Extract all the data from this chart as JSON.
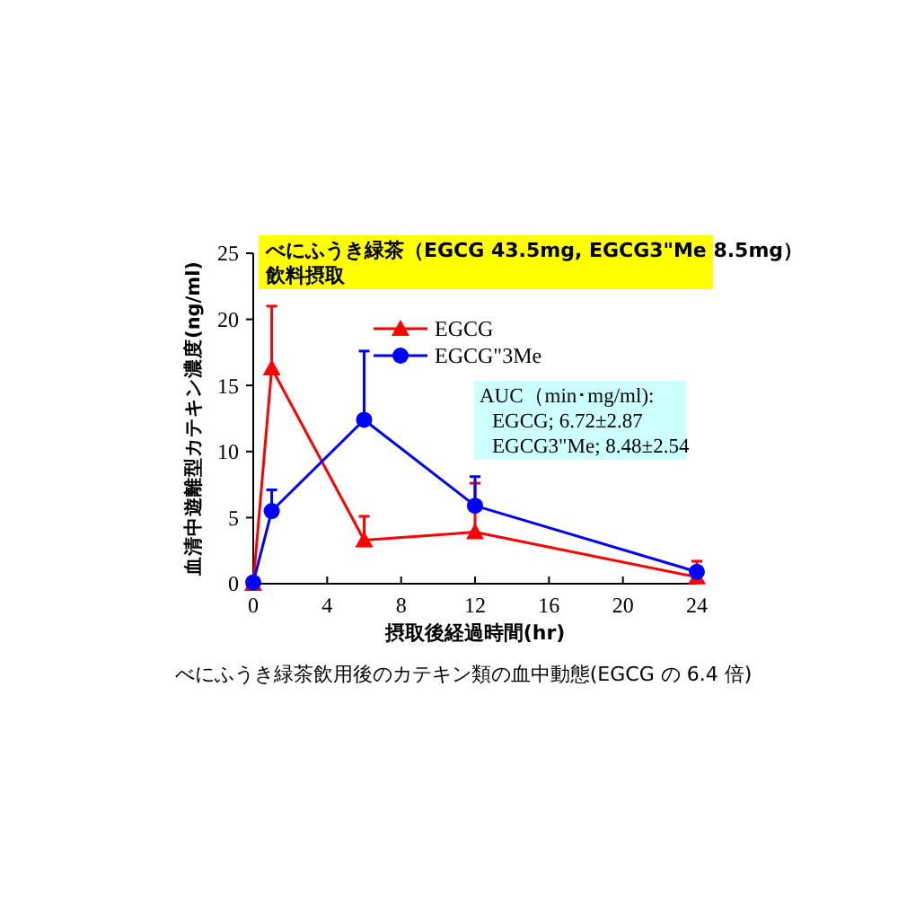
{
  "chart_data": {
    "type": "line",
    "title": "べにふうき緑茶（EGCG 43.5mg, EGCG3\"Me 8.5mg）",
    "subtitle": "飲料摂取",
    "xlabel": "摂取後経過時間(hr)",
    "ylabel": "血清中遊離型カテキン濃度(ng/ml)",
    "x": [
      0,
      1,
      6,
      12,
      24
    ],
    "xlim": [
      0,
      24
    ],
    "xticks": [
      0,
      4,
      8,
      12,
      16,
      20,
      24
    ],
    "ylim": [
      0,
      25
    ],
    "yticks": [
      0,
      5,
      10,
      15,
      20,
      25
    ],
    "legend": "top",
    "grid": false,
    "series": [
      {
        "name": "EGCG",
        "color": "#ff0000",
        "marker": "triangle",
        "values": [
          0,
          16.3,
          3.3,
          3.9,
          0.5
        ],
        "errors": [
          null,
          [
            16.3,
            21
          ],
          [
            3.3,
            5.1
          ],
          [
            3.9,
            7.6
          ],
          [
            0.5,
            1.7
          ]
        ]
      },
      {
        "name": "EGCG\"3Me",
        "color": "#0000ff",
        "marker": "circle",
        "values": [
          0.1,
          5.5,
          12.4,
          5.9,
          0.9
        ],
        "errors": [
          null,
          [
            5.5,
            7.1
          ],
          [
            12.4,
            17.6
          ],
          [
            5.9,
            8.1
          ],
          [
            0.9,
            1.2
          ]
        ]
      }
    ],
    "annotations": [
      "AUC（min･mg/ml):",
      "EGCG; 6.72±2.87",
      "EGCG3\"Me; 8.48±2.54",
      "べにふうき緑茶飲用後のカテキン類の血中動態(EGCG の 6.4 倍)"
    ]
  }
}
